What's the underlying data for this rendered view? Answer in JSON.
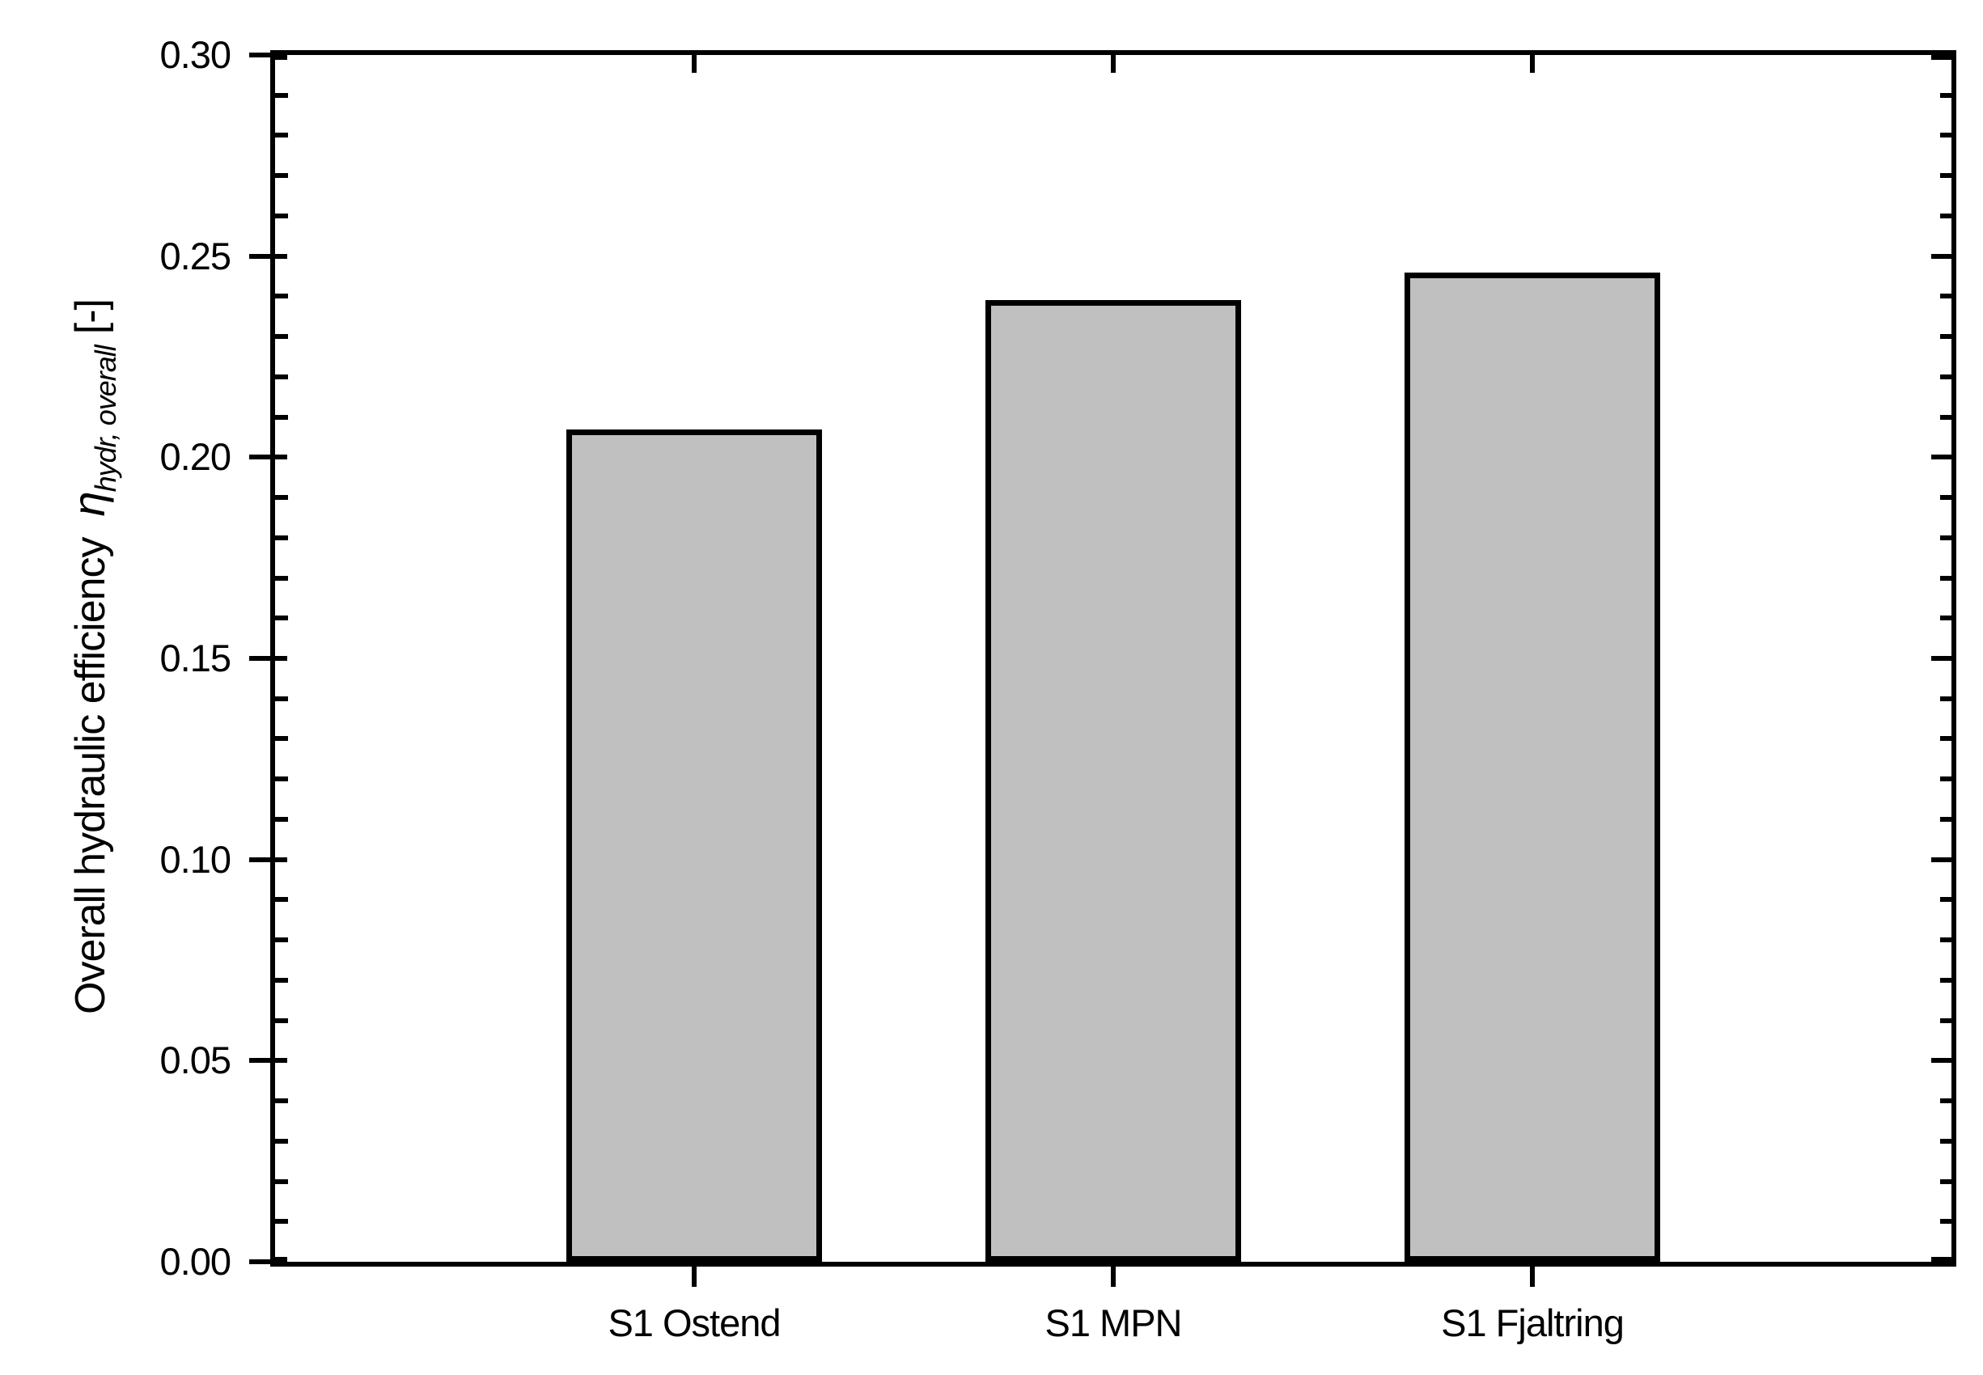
{
  "chart_data": {
    "type": "bar",
    "categories": [
      "S1 Ostend",
      "S1 MPN",
      "S1 Fjaltring"
    ],
    "values": [
      0.207,
      0.239,
      0.246
    ],
    "title": "",
    "xlabel": "",
    "ylabel": "Overall hydraulic efficiency η hydr, overall [-]",
    "ylabel_parts": {
      "text": "Overall hydraulic efficiency",
      "symbol": "η",
      "subscript": "hydr, overall",
      "units": "[-]"
    },
    "ylim": [
      0.0,
      0.3
    ],
    "ytick_major_step": 0.05,
    "ytick_minor_step": 0.01,
    "ytick_labels": [
      "0.00",
      "0.05",
      "0.10",
      "0.15",
      "0.20",
      "0.25",
      "0.30"
    ],
    "grid": false,
    "legend": "none",
    "colors": {
      "bar_fill": "#c0c0c0",
      "bar_border": "#000000",
      "axis": "#000000",
      "background": "#ffffff",
      "text": "#000000"
    }
  }
}
